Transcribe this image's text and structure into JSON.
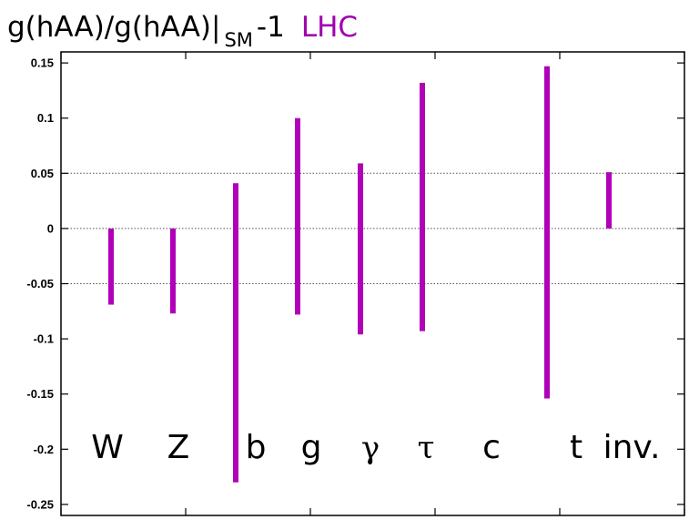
{
  "title": {
    "prefix": "g(hAA)/g(hAA)|",
    "subscript": "SM",
    "suffix": "-1",
    "tag": "LHC"
  },
  "chart_data": {
    "type": "bar",
    "subtype": "error-bar",
    "categories": [
      "W",
      "Z",
      "b",
      "g",
      "γ",
      "τ",
      "c",
      "t",
      "inv."
    ],
    "series": [
      {
        "low": [
          -0.069,
          -0.077,
          -0.23,
          -0.078,
          -0.096,
          -0.093,
          null,
          -0.154,
          0.0
        ],
        "high": [
          0.0,
          0.0,
          0.041,
          0.1,
          0.059,
          0.132,
          null,
          0.147,
          0.051
        ]
      }
    ],
    "ylim": [
      -0.26,
      0.16
    ],
    "yticks": [
      0.15,
      0.1,
      0.05,
      0,
      -0.05,
      -0.1,
      -0.15,
      -0.2,
      -0.25
    ],
    "ytick_labels": [
      "0.15",
      "0.1",
      "0.05",
      "0",
      "-0.05",
      "-0.1",
      "-0.15",
      "-0.2",
      "-0.25"
    ],
    "gridlines_at": [
      0.05,
      0,
      -0.05
    ],
    "grid": "dotted at 0.05, 0, -0.05",
    "xlabel": "",
    "ylabel": "",
    "colors": {
      "bar": "#b000b8",
      "tag": "#a000b0",
      "axis": "#000000",
      "grid": "#555555"
    }
  }
}
